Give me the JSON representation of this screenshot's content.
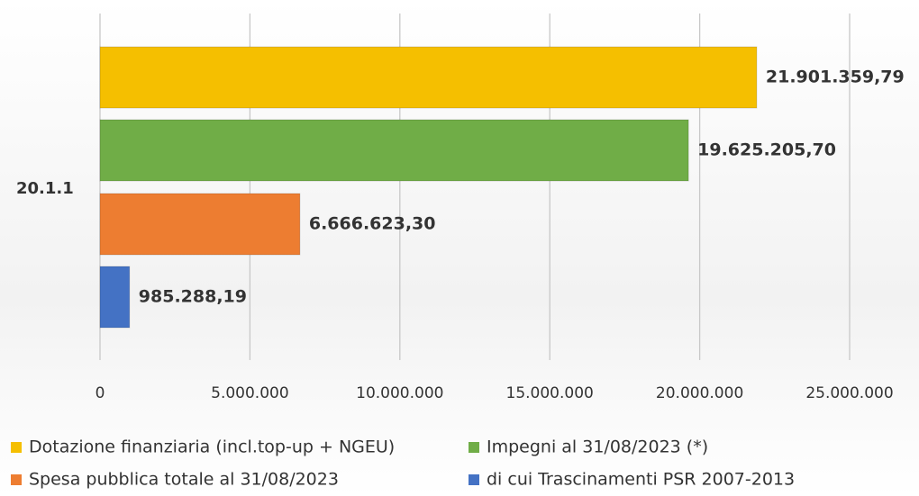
{
  "chart_data": {
    "type": "hbar",
    "categories": [
      "20.1.1"
    ],
    "series": [
      {
        "name": "Dotazione finanziaria (incl.top-up + NGEU)",
        "color": "#f5bf00",
        "values": [
          21901359.79
        ],
        "value_labels": [
          "21.901.359,79"
        ]
      },
      {
        "name": "Impegni al 31/08/2023 (*)",
        "color": "#70ad47",
        "values": [
          19625205.7
        ],
        "value_labels": [
          "19.625.205,70"
        ]
      },
      {
        "name": "Spesa pubblica totale al 31/08/2023",
        "color": "#ed7d31",
        "values": [
          6666623.3
        ],
        "value_labels": [
          "6.666.623,30"
        ]
      },
      {
        "name": "di cui Trascinamenti PSR 2007-2013",
        "color": "#4472c4",
        "values": [
          985288.19
        ],
        "value_labels": [
          "985.288,19"
        ]
      }
    ],
    "xlim": [
      0,
      25000000
    ],
    "xticks": [
      0,
      {
        "value": 5000000,
        "label": "5.000.000"
      },
      {
        "value": 10000000,
        "label": "10.000.000"
      },
      {
        "value": 15000000,
        "label": "15.000.000"
      },
      {
        "value": 20000000,
        "label": "20.000.000"
      },
      {
        "value": 25000000,
        "label": "25.000.000"
      }
    ],
    "grid": true
  }
}
